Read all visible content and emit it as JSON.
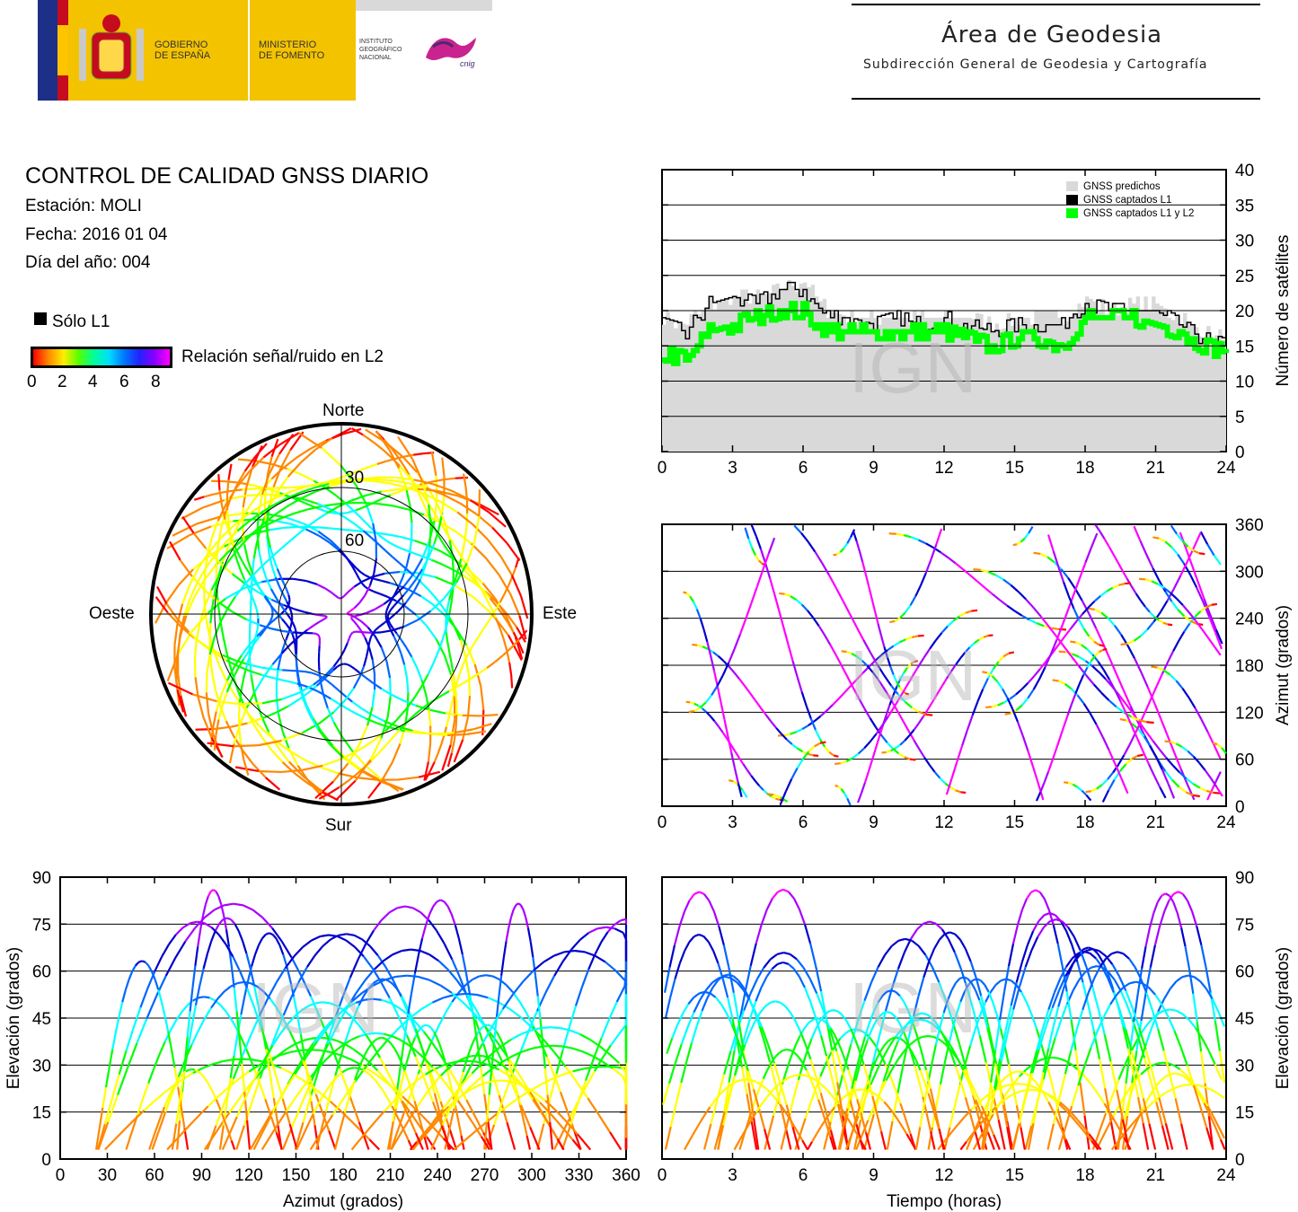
{
  "header": {
    "gov_line1": "GOBIERNO",
    "gov_line2": "DE ESPAÑA",
    "min_line1": "MINISTERIO",
    "min_line2": "DE FOMENTO",
    "ign_line1": "INSTITUTO",
    "ign_line2": "GEOGRÁFICO",
    "ign_line3": "NACIONAL",
    "cnig": "cnig",
    "area_title": "Área de Geodesia",
    "area_subtitle": "Subdirección General de Geodesia y Cartografía"
  },
  "info": {
    "title": "CONTROL DE CALIDAD GNSS DIARIO",
    "station": "Estación: MOLI",
    "date": "Fecha: 2016 01 04",
    "doy": "Día del año: 004"
  },
  "legend": {
    "only_l1": "Sólo L1",
    "snr_label": "Relación señal/ruido en L2",
    "snr_ticks": [
      "0",
      "2",
      "4",
      "6",
      "8"
    ]
  },
  "watermark": "IGN",
  "colors": {
    "predicted": "#d9d9d9",
    "captured_l1": "#000000",
    "captured_l1_l2": "#00ff00",
    "snr_gradient": [
      "#ff0000",
      "#ff8800",
      "#ffff00",
      "#00ff00",
      "#00ffff",
      "#0066ff",
      "#0000cc",
      "#aa00ff",
      "#ff00ff"
    ]
  },
  "chart_data": [
    {
      "type": "polar",
      "title": "",
      "directions": {
        "north": "Norte",
        "south": "Sur",
        "east": "Este",
        "west": "Oeste"
      },
      "elevation_rings": [
        "30",
        "60"
      ]
    },
    {
      "type": "line",
      "title": "",
      "xlabel": "",
      "ylabel": "Número de satélites",
      "xlim": [
        0,
        24
      ],
      "ylim": [
        0,
        40
      ],
      "xticks": [
        "0",
        "3",
        "6",
        "9",
        "12",
        "15",
        "18",
        "21",
        "24"
      ],
      "yticks": [
        "0",
        "5",
        "10",
        "15",
        "20",
        "25",
        "30",
        "35",
        "40"
      ],
      "legend": [
        "GNSS predichos",
        "GNSS captados L1",
        "GNSS captados L1 y L2"
      ],
      "legend_position": "top-right",
      "series": [
        {
          "name": "GNSS predichos",
          "x": [
            0,
            1,
            2,
            3,
            4,
            5,
            6,
            7,
            8,
            9,
            10,
            11,
            12,
            13,
            14,
            15,
            16,
            17,
            18,
            19,
            20,
            21,
            22,
            23,
            24
          ],
          "values": [
            19,
            18,
            21,
            22,
            22,
            23,
            24,
            20,
            19,
            19,
            19,
            19,
            19,
            19,
            18,
            19,
            19,
            19,
            22,
            20,
            21,
            21,
            19,
            17,
            16
          ]
        },
        {
          "name": "GNSS captados L1",
          "x": [
            0,
            1,
            2,
            3,
            4,
            5,
            6,
            7,
            8,
            9,
            10,
            11,
            12,
            13,
            14,
            15,
            16,
            17,
            18,
            19,
            20,
            21,
            22,
            23,
            24
          ],
          "values": [
            18,
            17,
            21,
            22,
            21,
            23,
            23,
            19,
            19,
            18,
            19,
            18,
            19,
            18,
            17,
            18,
            18,
            18,
            21,
            20,
            20,
            20,
            18,
            16,
            15
          ]
        },
        {
          "name": "GNSS captados L1 y L2",
          "x": [
            0,
            1,
            2,
            3,
            4,
            5,
            6,
            7,
            8,
            9,
            10,
            11,
            12,
            13,
            14,
            15,
            16,
            17,
            18,
            19,
            20,
            21,
            22,
            23,
            24
          ],
          "values": [
            14,
            13,
            17,
            18,
            19,
            20,
            20,
            17,
            17,
            17,
            17,
            17,
            17,
            16,
            15,
            16,
            16,
            15,
            19,
            19,
            19,
            18,
            17,
            15,
            14
          ]
        }
      ]
    },
    {
      "type": "scatter",
      "title": "",
      "xlabel": "",
      "ylabel": "Azimut (grados)",
      "xlim": [
        0,
        24
      ],
      "ylim": [
        0,
        360
      ],
      "xticks": [
        "0",
        "3",
        "6",
        "9",
        "12",
        "15",
        "18",
        "21",
        "24"
      ],
      "yticks": [
        "0",
        "60",
        "120",
        "180",
        "240",
        "300",
        "360"
      ]
    },
    {
      "type": "scatter",
      "title": "",
      "xlabel": "Azimut (grados)",
      "ylabel": "Elevación (grados)",
      "xlim": [
        0,
        360
      ],
      "ylim": [
        0,
        90
      ],
      "xticks": [
        "0",
        "30",
        "60",
        "90",
        "120",
        "150",
        "180",
        "210",
        "240",
        "270",
        "300",
        "330",
        "360"
      ],
      "yticks": [
        "0",
        "15",
        "30",
        "45",
        "60",
        "75",
        "90"
      ]
    },
    {
      "type": "scatter",
      "title": "",
      "xlabel": "Tiempo (horas)",
      "ylabel": "Elevación (grados)",
      "xlim": [
        0,
        24
      ],
      "ylim": [
        0,
        90
      ],
      "xticks": [
        "0",
        "3",
        "6",
        "9",
        "12",
        "15",
        "18",
        "21",
        "24"
      ],
      "yticks": [
        "0",
        "15",
        "30",
        "45",
        "60",
        "75",
        "90"
      ]
    }
  ]
}
